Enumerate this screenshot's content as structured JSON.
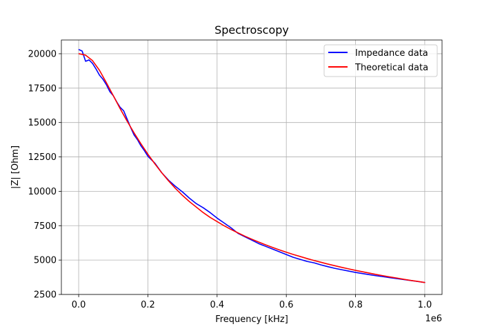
{
  "chart_data": {
    "type": "line",
    "title": "Spectroscopy",
    "xlabel": "Frequency [kHz]",
    "ylabel": "|Z| [Ohm]",
    "x_offset_label": "1e6",
    "xlim": [
      -50000,
      1050000
    ],
    "ylim": [
      2500,
      21000
    ],
    "x_ticks": [
      0,
      200000,
      400000,
      600000,
      800000,
      1000000
    ],
    "x_tick_labels": [
      "0.0",
      "0.2",
      "0.4",
      "0.6",
      "0.8",
      "1.0"
    ],
    "y_ticks": [
      2500,
      5000,
      7500,
      10000,
      12500,
      15000,
      17500,
      20000
    ],
    "y_tick_labels": [
      "2500",
      "5000",
      "7500",
      "10000",
      "12500",
      "15000",
      "17500",
      "20000"
    ],
    "grid": true,
    "legend_position": "top-right",
    "series": [
      {
        "name": "Impedance data",
        "color": "#0000ff",
        "x": [
          1000,
          10000,
          20000,
          30000,
          40000,
          50000,
          60000,
          70000,
          80000,
          90000,
          100000,
          110000,
          120000,
          130000,
          140000,
          150000,
          160000,
          170000,
          180000,
          190000,
          200000,
          220000,
          240000,
          260000,
          280000,
          300000,
          320000,
          340000,
          360000,
          380000,
          400000,
          420000,
          440000,
          460000,
          480000,
          500000,
          520000,
          540000,
          560000,
          580000,
          600000,
          620000,
          640000,
          660000,
          680000,
          700000,
          720000,
          740000,
          760000,
          780000,
          800000,
          820000,
          840000,
          860000,
          880000,
          900000,
          920000,
          940000,
          960000,
          980000,
          1000000
        ],
        "y": [
          20300,
          20200,
          19450,
          19550,
          19300,
          18900,
          18450,
          18150,
          17750,
          17250,
          16950,
          16500,
          16100,
          15850,
          15250,
          14650,
          14100,
          13750,
          13300,
          12950,
          12550,
          12050,
          11350,
          10800,
          10350,
          9950,
          9500,
          9100,
          8800,
          8450,
          8050,
          7700,
          7350,
          6950,
          6700,
          6450,
          6200,
          6000,
          5800,
          5600,
          5400,
          5200,
          5050,
          4900,
          4800,
          4650,
          4520,
          4400,
          4300,
          4200,
          4100,
          4020,
          3940,
          3860,
          3790,
          3720,
          3650,
          3580,
          3510,
          3440,
          3370
        ]
      },
      {
        "name": "Theoretical data",
        "color": "#ff0000",
        "x": [
          1000,
          20000,
          40000,
          60000,
          80000,
          100000,
          120000,
          140000,
          160000,
          180000,
          200000,
          220000,
          240000,
          260000,
          280000,
          300000,
          320000,
          340000,
          360000,
          380000,
          400000,
          420000,
          440000,
          460000,
          480000,
          500000,
          520000,
          540000,
          560000,
          580000,
          600000,
          620000,
          640000,
          660000,
          680000,
          700000,
          720000,
          740000,
          760000,
          780000,
          800000,
          820000,
          840000,
          860000,
          880000,
          900000,
          920000,
          940000,
          960000,
          980000,
          1000000
        ],
        "y": [
          20000,
          19900,
          19500,
          18800,
          17900,
          16950,
          16000,
          15100,
          14250,
          13450,
          12700,
          12000,
          11350,
          10750,
          10200,
          9700,
          9250,
          8850,
          8450,
          8100,
          7800,
          7500,
          7230,
          6980,
          6740,
          6520,
          6310,
          6110,
          5920,
          5740,
          5570,
          5410,
          5260,
          5110,
          4970,
          4840,
          4710,
          4590,
          4470,
          4360,
          4250,
          4150,
          4050,
          3950,
          3860,
          3770,
          3690,
          3600,
          3520,
          3450,
          3370
        ]
      }
    ]
  }
}
